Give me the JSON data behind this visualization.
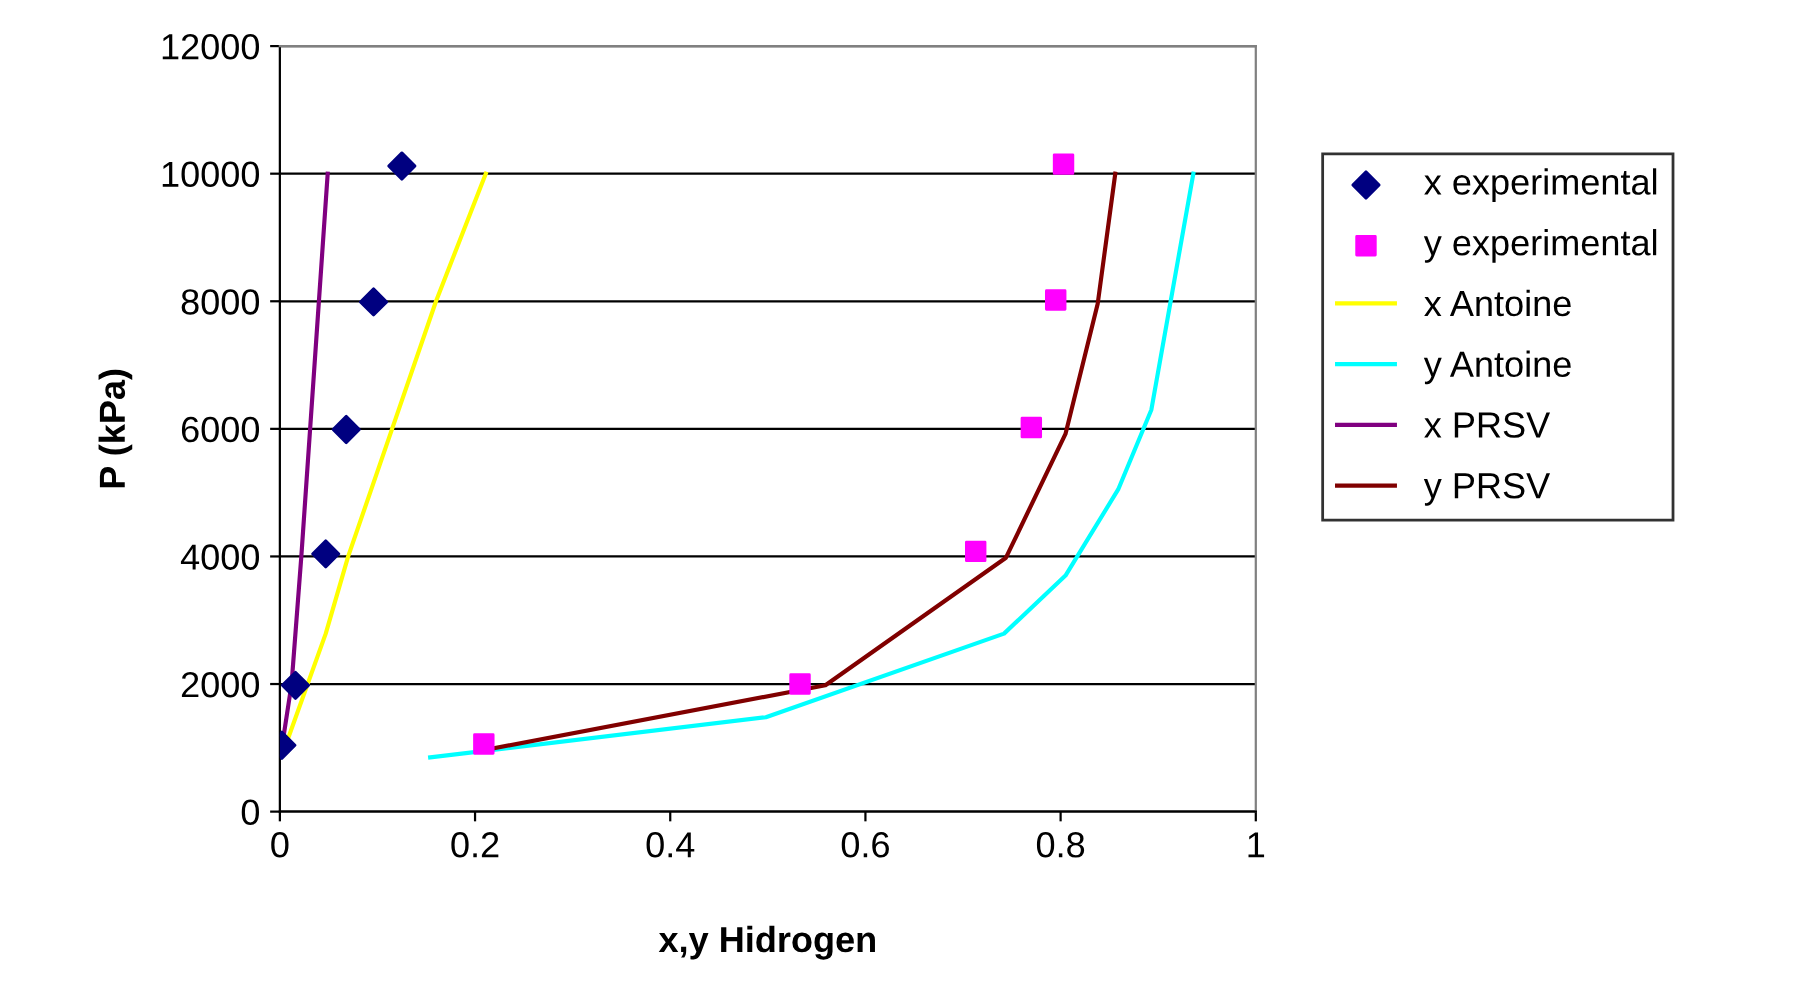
{
  "chart_data": {
    "type": "line",
    "xlabel": "x,y Hidrogen",
    "ylabel": "P (kPa)",
    "xlim": [
      0,
      1
    ],
    "xticks": [
      0,
      0.2,
      0.4,
      0.6,
      0.8,
      1
    ],
    "ylim": [
      0,
      12000
    ],
    "yticks": [
      0,
      2000,
      4000,
      6000,
      8000,
      10000,
      12000
    ],
    "grid": "y",
    "legend": "right",
    "series": [
      {
        "name": "x experimental",
        "type": "scatter",
        "marker": "diamond",
        "color": "#000080",
        "x": [
          0.002,
          0.016,
          0.047,
          0.068,
          0.096,
          0.125
        ],
        "values": [
          1040,
          1980,
          4040,
          5990,
          7990,
          10120
        ]
      },
      {
        "name": "y experimental",
        "type": "scatter",
        "marker": "square",
        "color": "#ff00ff",
        "x": [
          0.209,
          0.533,
          0.713,
          0.77,
          0.795,
          0.803
        ],
        "values": [
          1060,
          2000,
          4080,
          6020,
          8020,
          10150
        ]
      },
      {
        "name": "x Antoine",
        "marker": "none",
        "color": "#ffff00",
        "x": [
          0.005,
          0.047,
          0.07,
          0.115,
          0.16,
          0.211
        ],
        "values": [
          1000,
          2790,
          4000,
          6000,
          8000,
          10000
        ]
      },
      {
        "name": "y Antoine",
        "marker": "none",
        "color": "#00ffff",
        "x": [
          0.154,
          0.498,
          0.742,
          0.805,
          0.859,
          0.893,
          0.936
        ],
        "values": [
          850,
          1480,
          2790,
          3700,
          5050,
          6300,
          10000
        ]
      },
      {
        "name": "x PRSV",
        "marker": "none",
        "color": "#800080",
        "x": [
          0.002,
          0.012,
          0.022,
          0.031,
          0.04,
          0.049
        ],
        "values": [
          1000,
          2000,
          4000,
          6000,
          8000,
          10000
        ]
      },
      {
        "name": "y PRSV",
        "marker": "none",
        "color": "#800000",
        "x": [
          0.211,
          0.559,
          0.744,
          0.805,
          0.838,
          0.856
        ],
        "values": [
          970,
          1980,
          3980,
          5920,
          7960,
          10000
        ]
      }
    ]
  }
}
